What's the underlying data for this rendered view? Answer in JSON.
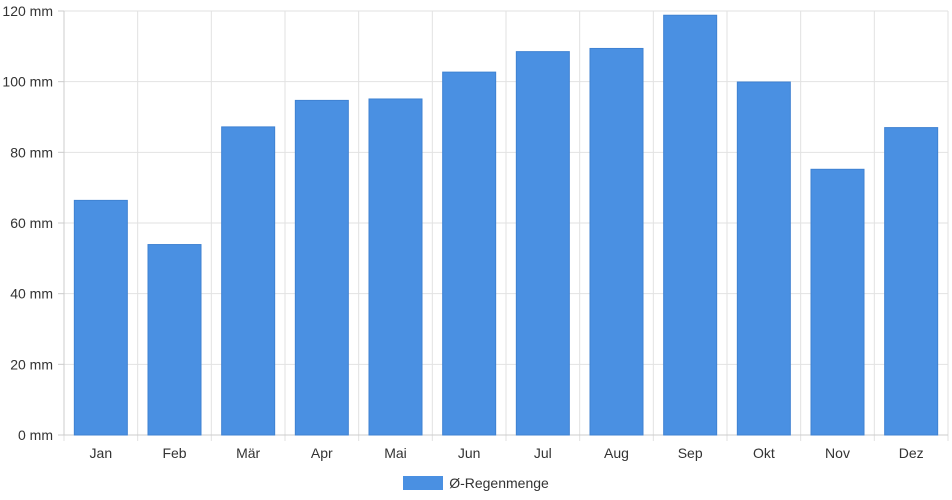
{
  "chart_data": {
    "type": "bar",
    "title": "",
    "xlabel": "",
    "ylabel": "",
    "y_unit": "mm",
    "ylim": [
      0,
      120
    ],
    "yticks": [
      0,
      20,
      40,
      60,
      80,
      100,
      120
    ],
    "ytick_labels": [
      "0 mm",
      "20 mm",
      "40 mm",
      "60 mm",
      "80 mm",
      "100 mm",
      "120 mm"
    ],
    "categories": [
      "Jan",
      "Feb",
      "Mär",
      "Apr",
      "Mai",
      "Jun",
      "Jul",
      "Aug",
      "Sep",
      "Okt",
      "Nov",
      "Dez"
    ],
    "series": [
      {
        "name": "Ø-Regenmenge",
        "color": "#4a90e2",
        "values": [
          66.4,
          53.9,
          87.2,
          94.7,
          95.1,
          102.7,
          108.5,
          109.4,
          118.8,
          99.9,
          75.2,
          87.0
        ]
      }
    ],
    "grid": true,
    "legend_position": "bottom-center"
  }
}
